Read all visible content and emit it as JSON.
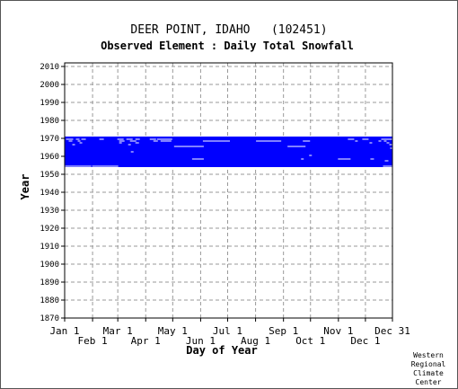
{
  "colors": {
    "data": "#0000ff",
    "gap": "#ffffff",
    "grid": "#999999",
    "axis": "#000000"
  },
  "chart_data": {
    "type": "heatmap",
    "title": "DEER POINT, IDAHO   (102451)",
    "subtitle": "Observed Element : Daily Total Snowfall",
    "xlabel": "Day of Year",
    "ylabel": "Year",
    "xlim": [
      1,
      365
    ],
    "ylim": [
      1870,
      2012
    ],
    "yticks": [
      1870,
      1880,
      1890,
      1900,
      1910,
      1920,
      1930,
      1940,
      1950,
      1960,
      1970,
      1980,
      1990,
      2000,
      2010
    ],
    "xticks_row1": [
      {
        "label": "Jan 1",
        "day": 1
      },
      {
        "label": "Mar 1",
        "day": 60
      },
      {
        "label": "May 1",
        "day": 121
      },
      {
        "label": "Jul 1",
        "day": 182
      },
      {
        "label": "Sep 1",
        "day": 244
      },
      {
        "label": "Nov 1",
        "day": 305
      },
      {
        "label": "Dec 31",
        "day": 365
      }
    ],
    "xticks_row2": [
      {
        "label": "Feb 1",
        "day": 32
      },
      {
        "label": "Apr 1",
        "day": 91
      },
      {
        "label": "Jun 1",
        "day": 152
      },
      {
        "label": "Aug 1",
        "day": 213
      },
      {
        "label": "Oct 1",
        "day": 274
      },
      {
        "label": "Dec 1",
        "day": 335
      }
    ],
    "grid": true,
    "data_block": {
      "year_start": 1954,
      "year_end": 1970,
      "day_start": 1,
      "day_end": 365
    },
    "gaps": [
      {
        "year": 1969,
        "day_start": 3,
        "day_end": 10
      },
      {
        "year": 1969,
        "day_start": 14,
        "day_end": 17
      },
      {
        "year": 1969,
        "day_start": 20,
        "day_end": 24
      },
      {
        "year": 1969,
        "day_start": 40,
        "day_end": 44
      },
      {
        "year": 1969,
        "day_start": 60,
        "day_end": 66
      },
      {
        "year": 1969,
        "day_start": 70,
        "day_end": 76
      },
      {
        "year": 1969,
        "day_start": 80,
        "day_end": 84
      },
      {
        "year": 1969,
        "day_start": 96,
        "day_end": 102
      },
      {
        "year": 1969,
        "day_start": 104,
        "day_end": 120
      },
      {
        "year": 1969,
        "day_start": 316,
        "day_end": 322
      },
      {
        "year": 1969,
        "day_start": 332,
        "day_end": 338
      },
      {
        "year": 1969,
        "day_start": 353,
        "day_end": 365
      },
      {
        "year": 1968,
        "day_start": 6,
        "day_end": 9
      },
      {
        "year": 1968,
        "day_start": 16,
        "day_end": 18
      },
      {
        "year": 1968,
        "day_start": 62,
        "day_end": 67
      },
      {
        "year": 1968,
        "day_start": 74,
        "day_end": 80
      },
      {
        "year": 1968,
        "day_start": 100,
        "day_end": 104
      },
      {
        "year": 1968,
        "day_start": 108,
        "day_end": 119
      },
      {
        "year": 1968,
        "day_start": 155,
        "day_end": 184
      },
      {
        "year": 1968,
        "day_start": 214,
        "day_end": 241
      },
      {
        "year": 1968,
        "day_start": 266,
        "day_end": 273
      },
      {
        "year": 1968,
        "day_start": 324,
        "day_end": 326
      },
      {
        "year": 1968,
        "day_start": 350,
        "day_end": 352
      },
      {
        "year": 1968,
        "day_start": 356,
        "day_end": 358
      },
      {
        "year": 1967,
        "day_start": 18,
        "day_end": 20
      },
      {
        "year": 1967,
        "day_start": 62,
        "day_end": 64
      },
      {
        "year": 1967,
        "day_start": 80,
        "day_end": 83
      },
      {
        "year": 1967,
        "day_start": 340,
        "day_end": 342
      },
      {
        "year": 1967,
        "day_start": 359,
        "day_end": 361
      },
      {
        "year": 1966,
        "day_start": 10,
        "day_end": 12
      },
      {
        "year": 1966,
        "day_start": 72,
        "day_end": 74
      },
      {
        "year": 1966,
        "day_start": 362,
        "day_end": 364
      },
      {
        "year": 1965,
        "day_start": 123,
        "day_end": 155
      },
      {
        "year": 1965,
        "day_start": 249,
        "day_end": 268
      },
      {
        "year": 1964,
        "day_start": 363,
        "day_end": 365
      },
      {
        "year": 1962,
        "day_start": 75,
        "day_end": 77
      },
      {
        "year": 1960,
        "day_start": 273,
        "day_end": 275
      },
      {
        "year": 1958,
        "day_start": 143,
        "day_end": 155
      },
      {
        "year": 1958,
        "day_start": 264,
        "day_end": 266
      },
      {
        "year": 1958,
        "day_start": 305,
        "day_end": 318
      },
      {
        "year": 1958,
        "day_start": 341,
        "day_end": 344
      },
      {
        "year": 1957,
        "day_start": 357,
        "day_end": 360
      },
      {
        "year": 1954,
        "day_start": 1,
        "day_end": 30
      },
      {
        "year": 1954,
        "day_start": 32,
        "day_end": 60
      },
      {
        "year": 1954,
        "day_start": 355,
        "day_end": 365
      }
    ]
  },
  "credit": {
    "line1": "Western",
    "line2": "Regional",
    "line3": "Climate",
    "line4": "Center"
  }
}
